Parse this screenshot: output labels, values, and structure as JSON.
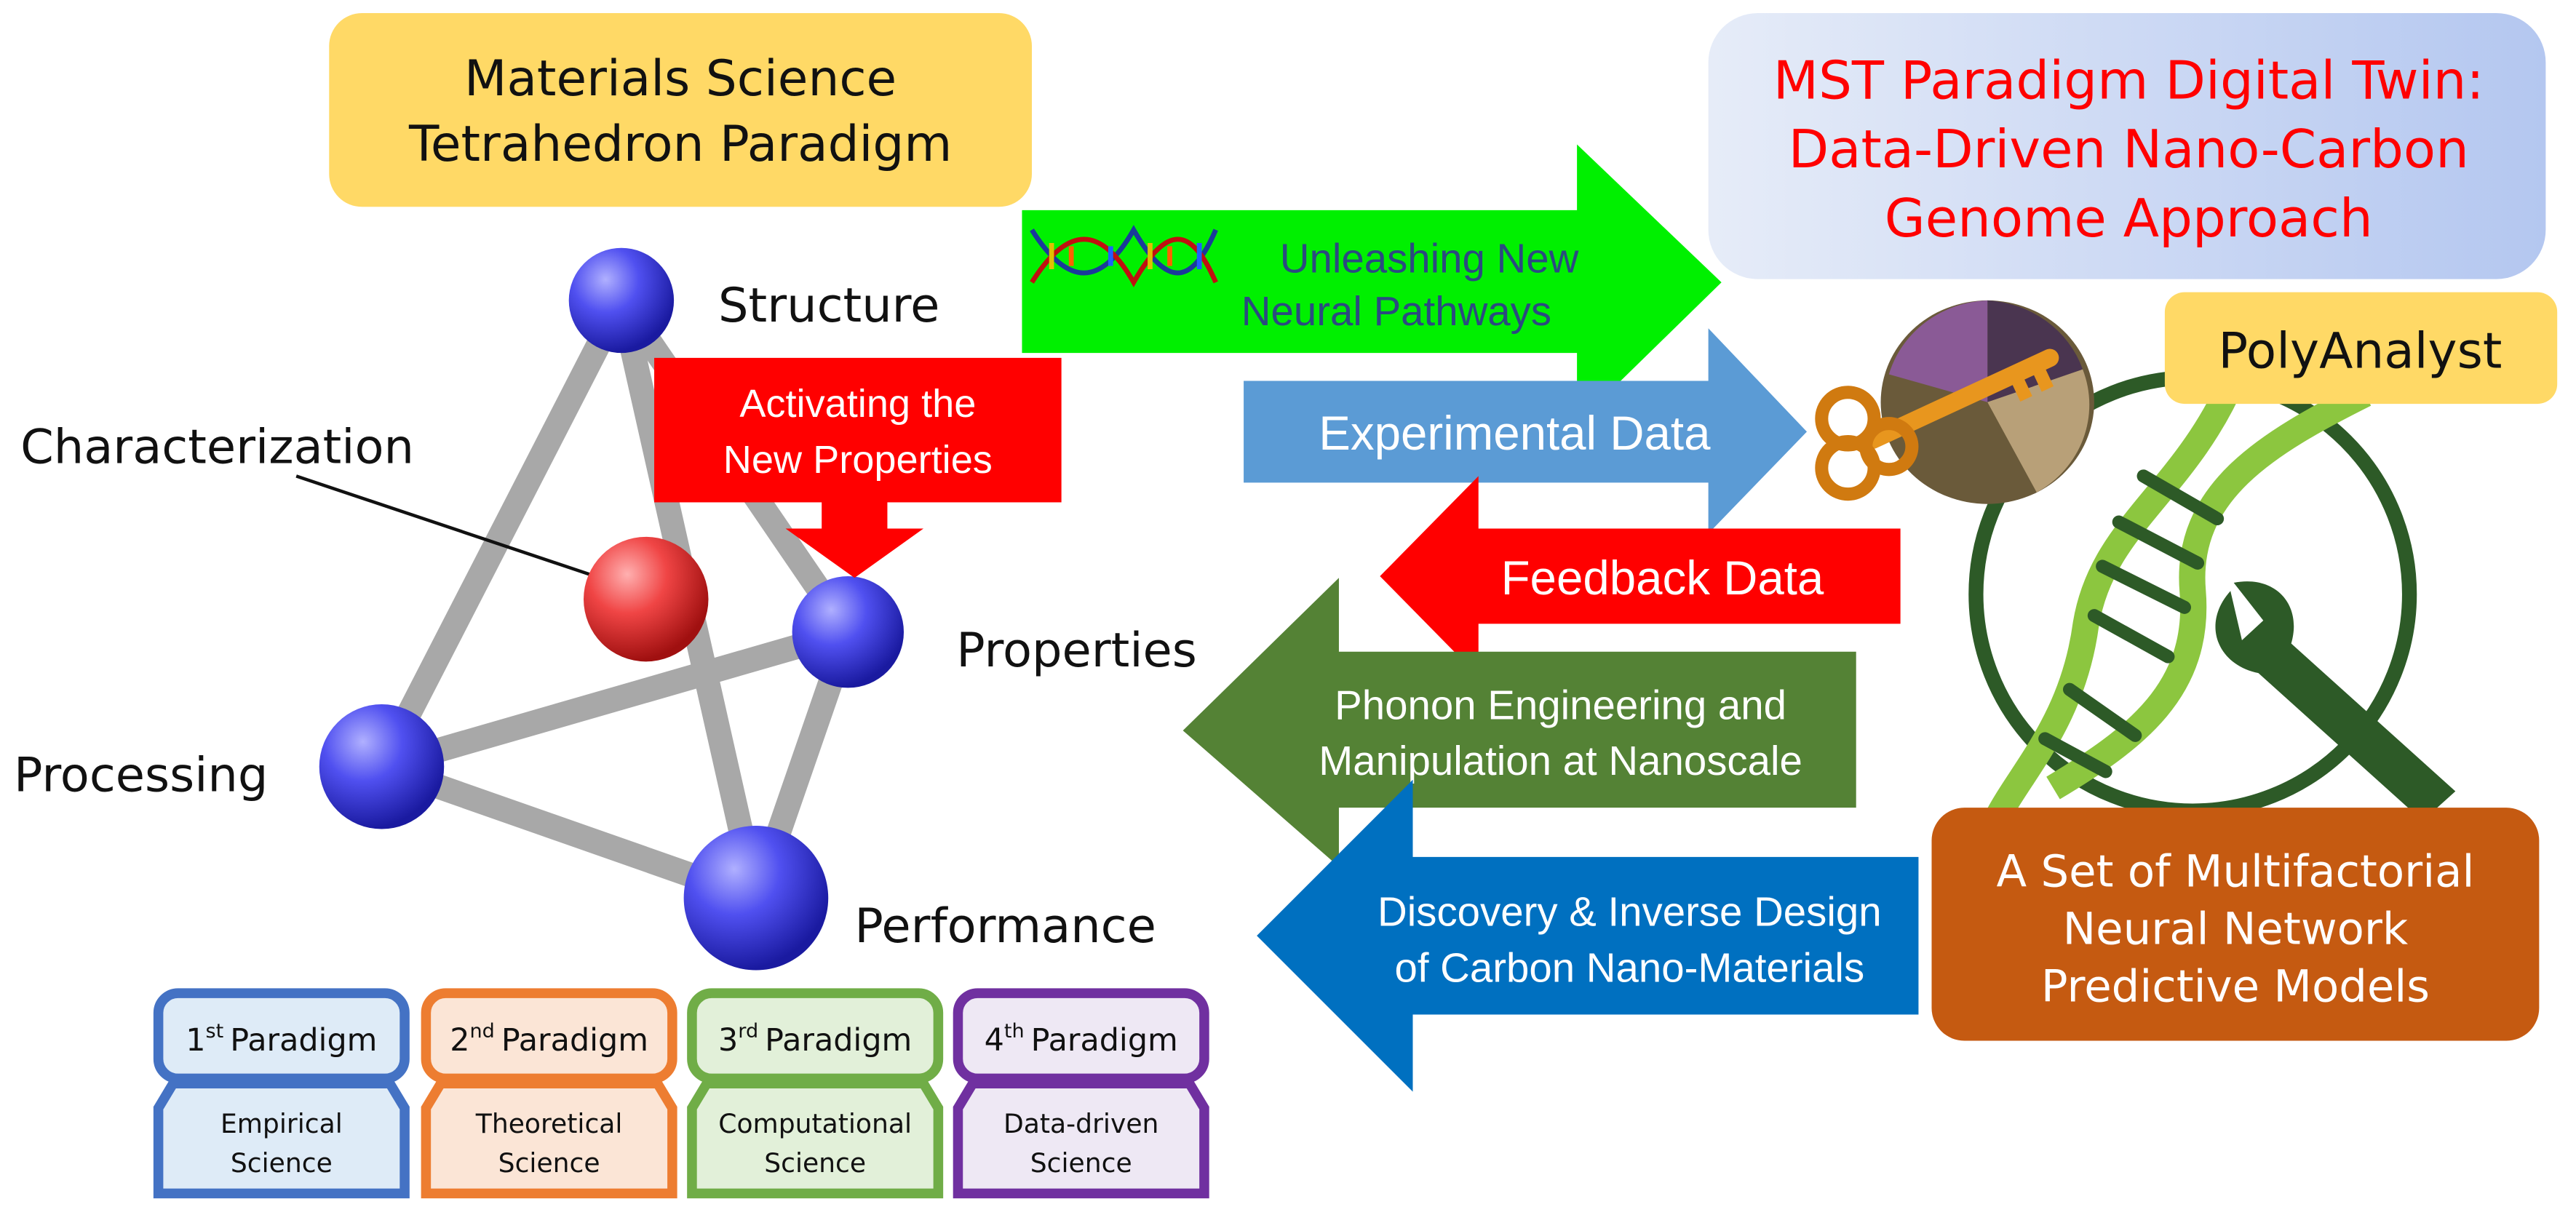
{
  "materials_box": {
    "lines": [
      "Materials Science",
      "Tetrahedron Paradigm"
    ]
  },
  "tetrahedron": {
    "structure": "Structure",
    "characterization": "Characterization",
    "properties": "Properties",
    "processing": "Processing",
    "performance": "Performance"
  },
  "callout": {
    "lines": [
      "Activating the",
      "New Properties"
    ]
  },
  "arrows": {
    "neural": {
      "lines": [
        "Unleashing New",
        "Neural Pathways"
      ],
      "direction": "right"
    },
    "experimental": {
      "label": "Experimental Data",
      "direction": "right"
    },
    "feedback": {
      "label": "Feedback Data",
      "direction": "left"
    },
    "phonon": {
      "lines": [
        "Phonon Engineering and",
        "Manipulation at Nanoscale"
      ],
      "direction": "left"
    },
    "discovery": {
      "lines": [
        "Discovery & Inverse Design",
        "of Carbon Nano-Materials"
      ],
      "direction": "left"
    }
  },
  "digital_twin": {
    "lines": [
      "MST Paradigm Digital Twin:",
      "Data-Driven Nano-Carbon",
      "Genome Approach"
    ]
  },
  "polyanalyst": {
    "label": "PolyAnalyst"
  },
  "models_box": {
    "lines": [
      "A Set of Multifactorial",
      "Neural Network",
      "Predictive Models"
    ]
  },
  "paradigms": [
    {
      "ordinal": "1",
      "suffix": "st",
      "word": "Paradigm",
      "science": [
        "Empirical",
        "Science"
      ],
      "border": "#4472C4",
      "fill": "#DEEBF7"
    },
    {
      "ordinal": "2",
      "suffix": "nd",
      "word": "Paradigm",
      "science": [
        "Theoretical",
        "Science"
      ],
      "border": "#ED7D31",
      "fill": "#FBE5D6"
    },
    {
      "ordinal": "3",
      "suffix": "rd",
      "word": "Paradigm",
      "science": [
        "Computational",
        "Science"
      ],
      "border": "#70AD47",
      "fill": "#E2F0D9"
    },
    {
      "ordinal": "4",
      "suffix": "th",
      "word": "Paradigm",
      "science": [
        "Data-driven",
        "Science"
      ],
      "border": "#7030A0",
      "fill": "#EEE8F4"
    }
  ],
  "colors": {
    "yellow": "#FFD966",
    "bright_green": "#00F000",
    "light_blue": "#5B9BD5",
    "red": "#FF0000",
    "olive_green": "#548235",
    "blue": "#0070C0",
    "orange": "#C55A11",
    "node_blue": "#4040F0",
    "node_red": "#F04040"
  },
  "icons": [
    "dna-strand-icon",
    "key-icon",
    "pie-chart-icon",
    "dna-wrench-logo"
  ]
}
